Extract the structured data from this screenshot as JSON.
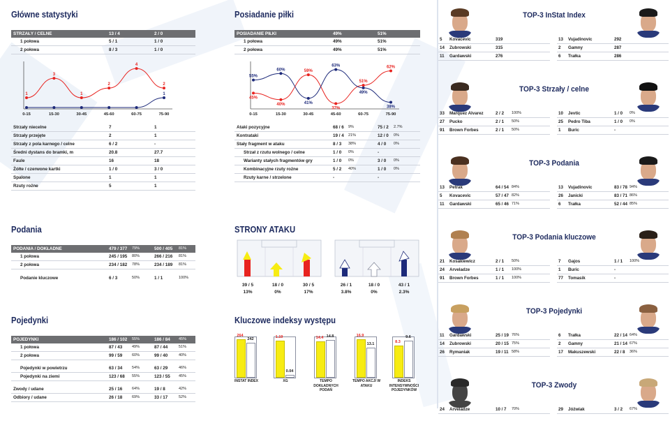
{
  "left": {
    "glowne": {
      "title": "Główne statystyki",
      "header": [
        "STRZAŁY / CELNE",
        "13 / 4",
        "2 / 0"
      ],
      "halves": [
        [
          "1 połowa",
          "5 / 1",
          "1 / 0"
        ],
        [
          "2 połowa",
          "8 / 3",
          "1 / 0"
        ]
      ],
      "rows": [
        [
          "Strzały niecelne",
          "7",
          "1"
        ],
        [
          "Strzały przejęte",
          "2",
          "1"
        ],
        [
          "Strzały z pola karnego / celne",
          "6 / 2",
          "-"
        ],
        [
          "Średni dystans do bramki, m",
          "20.8",
          "27.7"
        ],
        [
          "Faule",
          "16",
          "18"
        ],
        [
          "Żółte / czerwone kartki",
          "1 / 0",
          "3 / 0"
        ],
        [
          "Spalone",
          "1",
          "1"
        ],
        [
          "Rzuty rożne",
          "5",
          "1"
        ]
      ]
    },
    "shots_chart": {
      "x": [
        "0-15",
        "15-30",
        "30-45",
        "45-60",
        "60-75",
        "75-90"
      ],
      "red": [
        1,
        3,
        1,
        2,
        4,
        2
      ],
      "blue": [
        0,
        0,
        0,
        0,
        0,
        1
      ],
      "red_labels": [
        "1",
        "3",
        "1",
        "2",
        "4",
        "2"
      ],
      "blue_labels": [
        "",
        "",
        "",
        "",
        "",
        "1"
      ]
    },
    "podania": {
      "title": "Podania",
      "header": [
        "PODANIA / DOKŁADNE",
        "479 / 377",
        "79%",
        "500 / 405",
        "81%"
      ],
      "rows": [
        [
          "1 połowa",
          "245 / 195",
          "80%",
          "266 / 216",
          "81%"
        ],
        [
          "2 połowa",
          "234 / 182",
          "78%",
          "234 / 189",
          "81%"
        ]
      ],
      "extra": [
        "Podanie kluczowe",
        "6 / 3",
        "50%",
        "1 / 1",
        "100%"
      ]
    },
    "pojedynki": {
      "title": "Pojedynki",
      "header": [
        "POJEDYNKI",
        "186 / 102",
        "55%",
        "186 / 84",
        "45%"
      ],
      "rows": [
        [
          "1 połowa",
          "87 / 43",
          "49%",
          "87 / 44",
          "51%"
        ],
        [
          "2 połowa",
          "99 / 59",
          "60%",
          "99 / 40",
          "40%"
        ]
      ],
      "rows2": [
        [
          "Pojedynki w powietrzu",
          "63 / 34",
          "54%",
          "63 / 29",
          "46%"
        ],
        [
          "Pojedynki na ziemi",
          "123 / 68",
          "55%",
          "123 / 55",
          "45%"
        ]
      ],
      "rows3": [
        [
          "Zwody / udane",
          "25 / 16",
          "64%",
          "19 / 8",
          "42%"
        ],
        [
          "Odbiory / udane",
          "26 / 18",
          "69%",
          "33 / 17",
          "52%"
        ]
      ]
    }
  },
  "mid": {
    "posiadanie": {
      "title": "Posiadanie piłki",
      "header": [
        "POSIADANIE PIŁKI",
        "49%",
        "51%"
      ],
      "halves": [
        [
          "1 połowa",
          "49%",
          "51%"
        ],
        [
          "2 połowa",
          "49%",
          "51%"
        ]
      ]
    },
    "poss_chart": {
      "x": [
        "0-15",
        "15-30",
        "30-45",
        "45-60",
        "60-75",
        "75-90"
      ],
      "red": [
        45,
        40,
        59,
        37,
        51,
        62
      ],
      "blue": [
        55,
        60,
        41,
        63,
        49,
        38
      ],
      "red_labels": [
        "45%",
        "40%",
        "59%",
        "37%",
        "51%",
        "62%"
      ],
      "blue_labels": [
        "55%",
        "60%",
        "41%",
        "63%",
        "49%",
        "38%"
      ]
    },
    "rows": [
      [
        "Ataki pozycyjne",
        "68 / 6",
        "9%",
        "75 / 2",
        "2.7%"
      ],
      [
        "Kontrataki",
        "19 / 4",
        "21%",
        "12 / 0",
        "0%"
      ],
      [
        "Stały fragment w ataku",
        "8 / 3",
        "38%",
        "4 / 0",
        "0%"
      ],
      [
        "Strzał z rzutu wolnego / celne",
        "1 / 0",
        "0%",
        "-",
        ""
      ],
      [
        "Warianty stałych fragmentów gry",
        "1 / 0",
        "0%",
        "3 / 0",
        "0%"
      ],
      [
        "Kombinacyjne rzuty rożne",
        "5 / 2",
        "40%",
        "1 / 0",
        "0%"
      ],
      [
        "Rzuty karne / strzelone",
        "-",
        "",
        "-",
        ""
      ]
    ],
    "strony": {
      "title": "STRONY ATAKU",
      "left_vals": [
        [
          "39 / 5",
          "13%"
        ],
        [
          "18 / 0",
          "0%"
        ],
        [
          "30 / 5",
          "17%"
        ]
      ],
      "right_vals": [
        [
          "26 / 1",
          "3.8%"
        ],
        [
          "18 / 0",
          "0%"
        ],
        [
          "43 / 1",
          "2.3%"
        ]
      ],
      "colors": {
        "red": "#e8231f",
        "yellow": "#f7ec13",
        "navy": "#1d2a7a"
      }
    },
    "kluczowe": {
      "title": "Kluczowe indeksy występu",
      "items": [
        {
          "label": "INSTAT INDEX",
          "a": "264",
          "b": "242",
          "av": 264,
          "bv": 242,
          "max": 280
        },
        {
          "label": "XG",
          "a": "1.19",
          "b": "0.04",
          "av": 1.19,
          "bv": 0.04,
          "max": 1.3
        },
        {
          "label": "TEMPO DOKŁADNYCH PODAŃ",
          "a": "14.4",
          "b": "14.8",
          "av": 14.4,
          "bv": 14.8,
          "max": 16
        },
        {
          "label": "TEMPO AKCJI W ATAKU",
          "a": "16.9",
          "b": "13.1",
          "av": 16.9,
          "bv": 13.1,
          "max": 18
        },
        {
          "label": "INDEKS INTENSYWNOŚCI POJEDYNKÓW",
          "a": "8.3",
          "b": "9.6",
          "av": 8.3,
          "bv": 9.6,
          "max": 10.5
        }
      ]
    }
  },
  "right": [
    {
      "title": "TOP-3 InStat Index",
      "left": [
        [
          "5",
          "Kovacevic",
          "319",
          ""
        ],
        [
          "14",
          "Zubrowski",
          "315",
          ""
        ],
        [
          "11",
          "Gardawski",
          "276",
          ""
        ]
      ],
      "right": [
        [
          "13",
          "Vujadinovic",
          "292",
          ""
        ],
        [
          "2",
          "Gamny",
          "287",
          ""
        ],
        [
          "6",
          "Trałka",
          "286",
          ""
        ]
      ]
    },
    {
      "title": "TOP-3 Strzały / celne",
      "left": [
        [
          "33",
          "Marquez Alvarez",
          "2 / 2",
          "100%"
        ],
        [
          "27",
          "Pucko",
          "2 / 1",
          "50%"
        ],
        [
          "91",
          "Brown Forbes",
          "2 / 1",
          "50%"
        ]
      ],
      "right": [
        [
          "10",
          "Jevtic",
          "1 / 0",
          "0%"
        ],
        [
          "25",
          "Pedro Tiba",
          "1 / 0",
          "0%"
        ],
        [
          "1",
          "Buric",
          "-",
          ""
        ]
      ]
    },
    {
      "title": "TOP-3 Podania",
      "left": [
        [
          "13",
          "Petrak",
          "64 / 54",
          "84%"
        ],
        [
          "5",
          "Kovacevic",
          "57 / 47",
          "82%"
        ],
        [
          "11",
          "Gardawski",
          "65 / 46",
          "71%"
        ]
      ],
      "right": [
        [
          "13",
          "Vujadinovic",
          "83 / 78",
          "94%"
        ],
        [
          "26",
          "Janicki",
          "83 / 71",
          "86%"
        ],
        [
          "6",
          "Trałka",
          "52 / 44",
          "85%"
        ]
      ]
    },
    {
      "title": "TOP-3 Podania kluczowe",
      "left": [
        [
          "21",
          "Kosakiewicz",
          "2 / 1",
          "50%"
        ],
        [
          "24",
          "Arveladze",
          "1 / 1",
          "100%"
        ],
        [
          "91",
          "Brown Forbes",
          "1 / 1",
          "100%"
        ]
      ],
      "right": [
        [
          "7",
          "Gajos",
          "1 / 1",
          "100%"
        ],
        [
          "1",
          "Buric",
          "-",
          ""
        ],
        [
          "77",
          "Tomasik",
          "-",
          ""
        ]
      ]
    },
    {
      "title": "TOP-3 Pojedynki",
      "left": [
        [
          "11",
          "Gardawski",
          "25 / 19",
          "76%"
        ],
        [
          "14",
          "Zubrowski",
          "20 / 15",
          "75%"
        ],
        [
          "26",
          "Rymaniak",
          "19 / 11",
          "58%"
        ]
      ],
      "right": [
        [
          "6",
          "Trałka",
          "22 / 14",
          "64%"
        ],
        [
          "2",
          "Gamny",
          "21 / 14",
          "67%"
        ],
        [
          "17",
          "Makuszewski",
          "22 / 8",
          "36%"
        ]
      ]
    },
    {
      "title": "TOP-3 Zwody",
      "left": [
        [
          "24",
          "Arveladze",
          "10 / 7",
          "70%"
        ]
      ],
      "right": [
        [
          "29",
          "Jóźwiak",
          "3 / 2",
          "67%"
        ]
      ]
    }
  ],
  "chart_data": [
    {
      "type": "line",
      "title": "",
      "x": [
        "0-15",
        "15-30",
        "30-45",
        "45-60",
        "60-75",
        "75-90"
      ],
      "series": [
        {
          "values": [
            1,
            3,
            1,
            2,
            4,
            2
          ]
        },
        {
          "values": [
            0,
            0,
            0,
            0,
            0,
            1
          ]
        }
      ]
    },
    {
      "type": "line",
      "title": "",
      "x": [
        "0-15",
        "15-30",
        "30-45",
        "45-60",
        "60-75",
        "75-90"
      ],
      "series": [
        {
          "values": [
            45,
            40,
            59,
            37,
            51,
            62
          ]
        },
        {
          "values": [
            55,
            60,
            41,
            63,
            49,
            38
          ]
        }
      ]
    },
    {
      "type": "bar",
      "title": "Kluczowe indeksy występu",
      "categories": [
        "INSTAT INDEX",
        "XG",
        "TEMPO DOKŁADNYCH PODAŃ",
        "TEMPO AKCJI W ATAKU",
        "INDEKS INTENSYWNOŚCI POJEDYNKÓW"
      ],
      "series": [
        {
          "values": [
            264,
            1.19,
            14.4,
            16.9,
            8.3
          ]
        },
        {
          "values": [
            242,
            0.04,
            14.8,
            13.1,
            9.6
          ]
        }
      ]
    }
  ]
}
